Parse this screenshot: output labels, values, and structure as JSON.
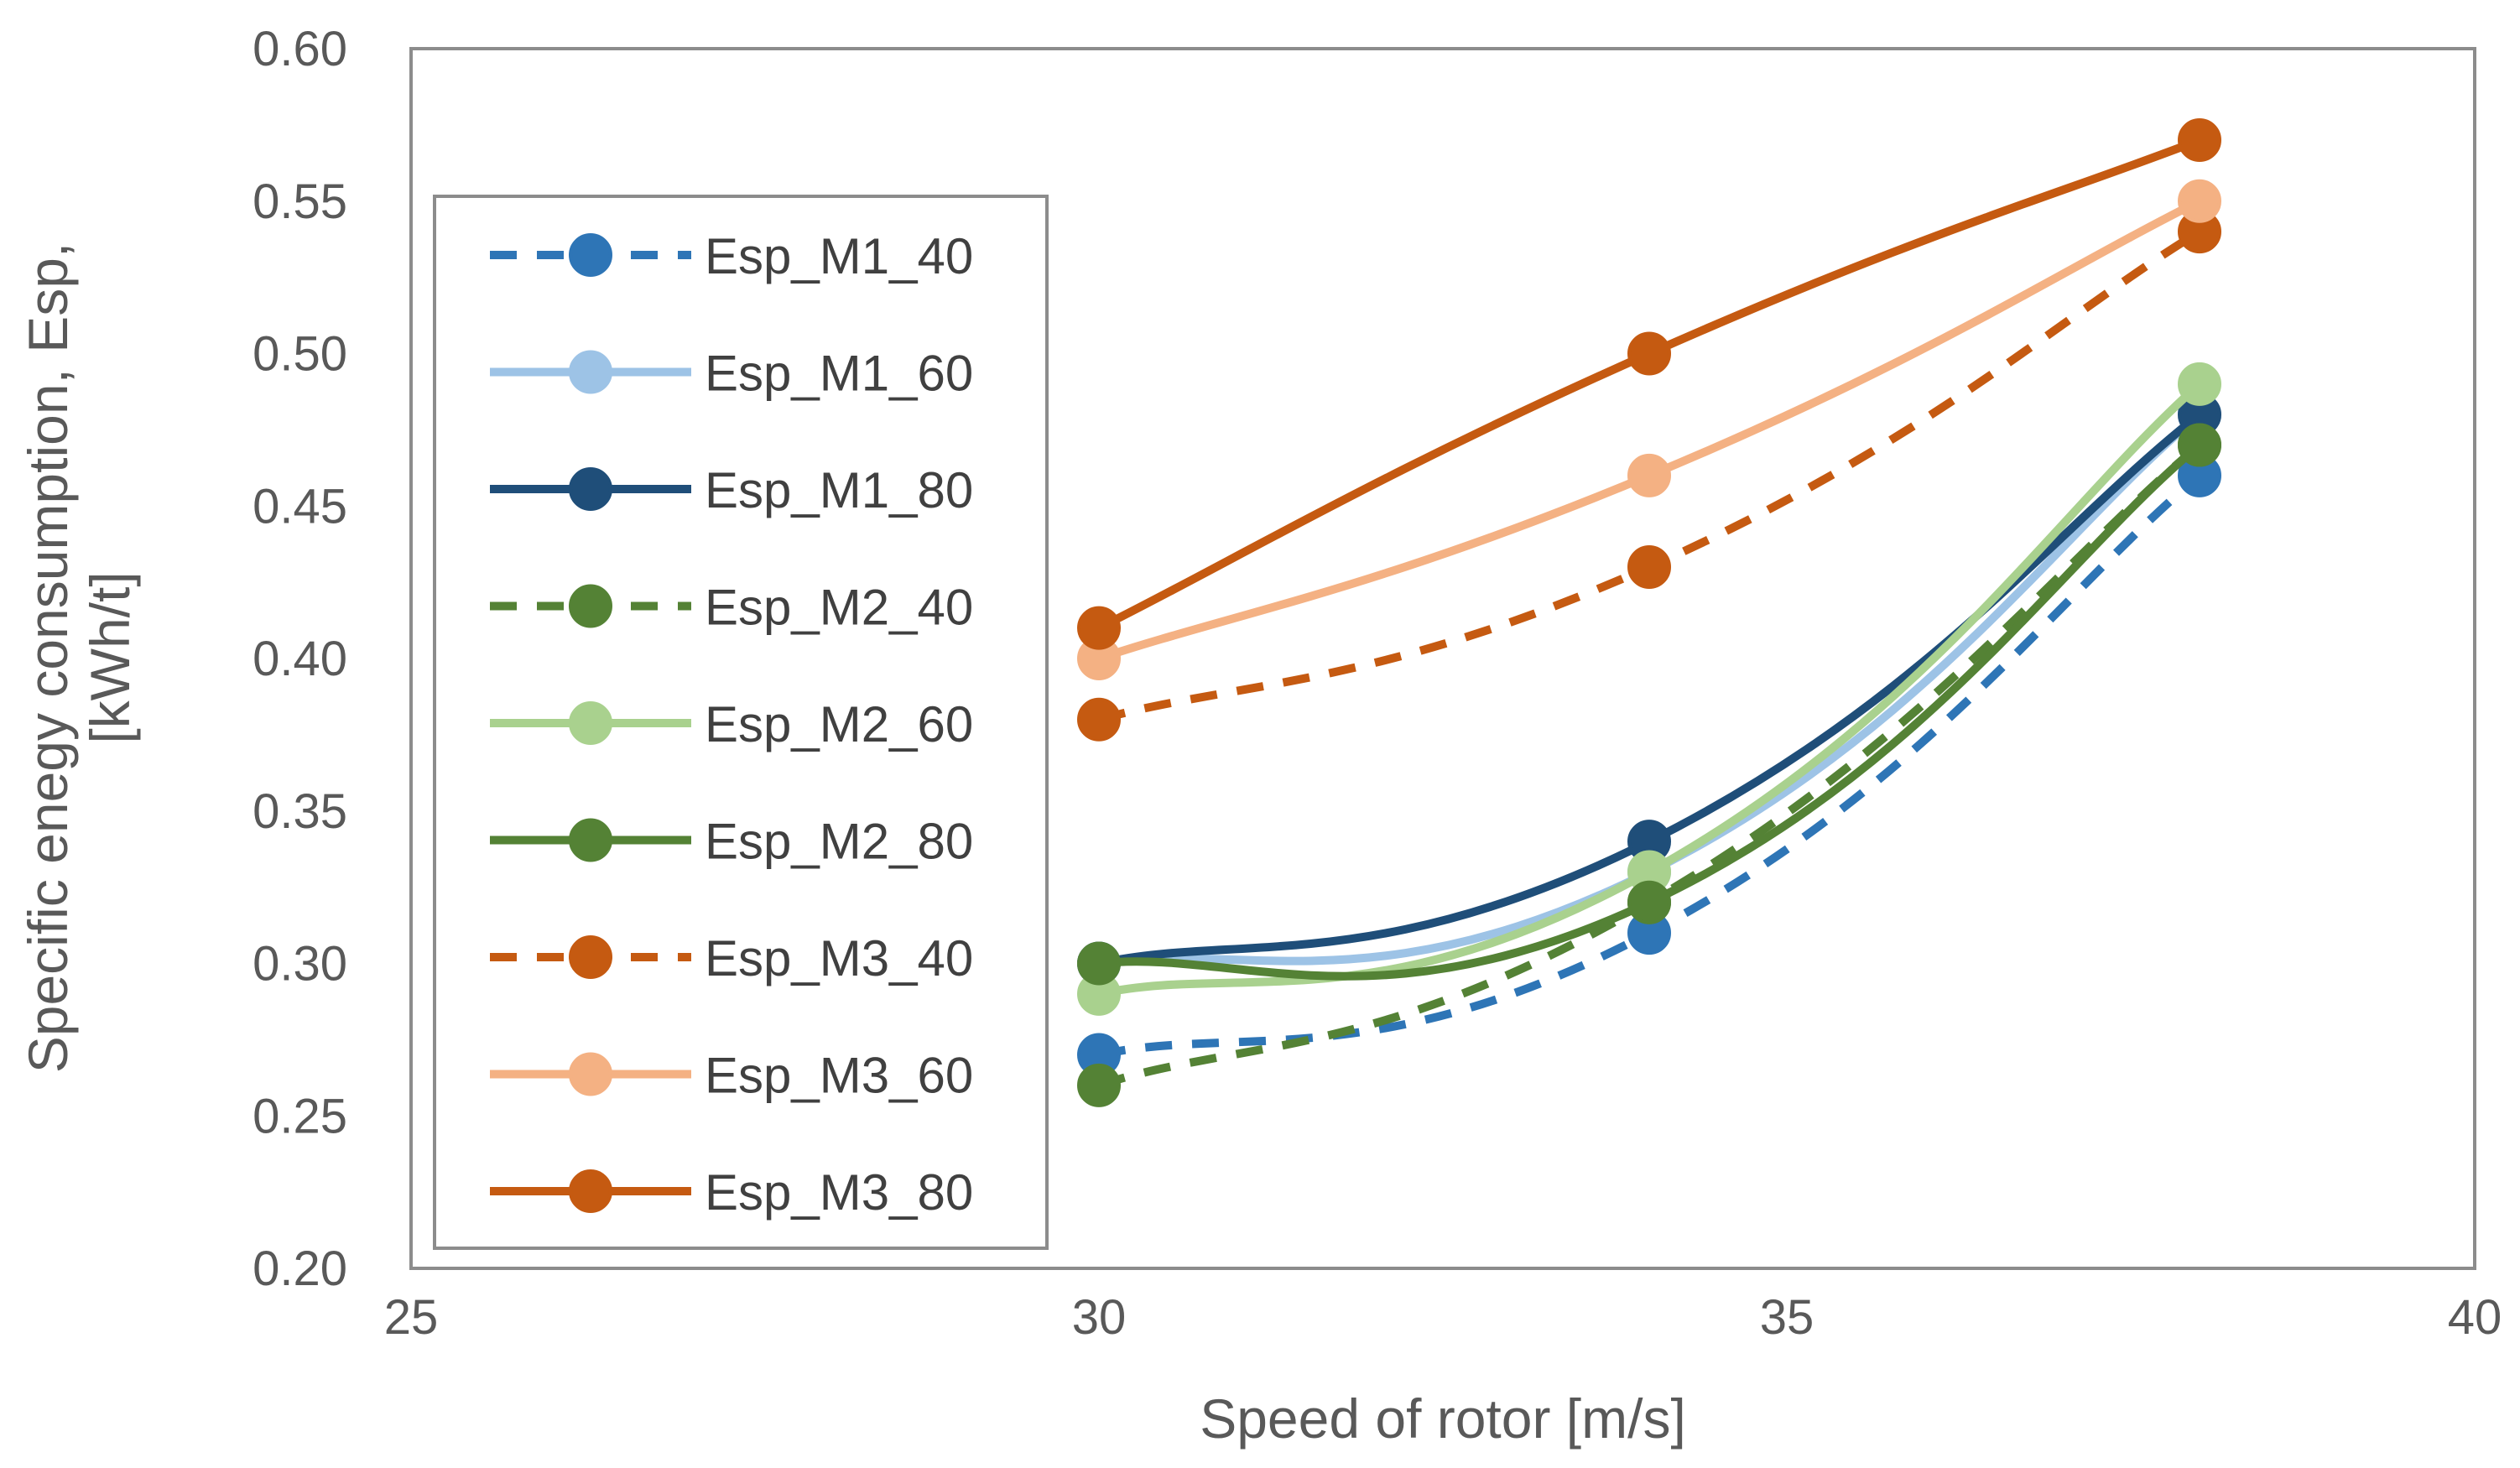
{
  "chart_data": {
    "type": "line",
    "xlabel": "Speed of rotor [m/s]",
    "ylabel_lines": [
      "Specific enegy consumption, Esp,",
      "[kWh/t]"
    ],
    "xlim": [
      25,
      40
    ],
    "ylim": [
      0.2,
      0.6
    ],
    "x_ticks": [
      "25",
      "30",
      "35",
      "40"
    ],
    "y_ticks": [
      "0.20",
      "0.25",
      "0.30",
      "0.35",
      "0.40",
      "0.45",
      "0.50",
      "0.55",
      "0.60"
    ],
    "x": [
      30,
      34,
      38
    ],
    "legend_position": "left, inside plot area",
    "grid": false,
    "series": [
      {
        "name": "Esp_M1_40",
        "values": [
          0.27,
          0.31,
          0.46
        ],
        "color": "#2E75B6",
        "dashed": true
      },
      {
        "name": "Esp_M1_60",
        "values": [
          0.3,
          0.33,
          0.48
        ],
        "color": "#9DC3E6",
        "dashed": false
      },
      {
        "name": "Esp_M1_80",
        "values": [
          0.3,
          0.34,
          0.48
        ],
        "color": "#1F4E79",
        "dashed": false
      },
      {
        "name": "Esp_M2_40",
        "values": [
          0.26,
          0.32,
          0.47
        ],
        "color": "#548235",
        "dashed": true
      },
      {
        "name": "Esp_M2_60",
        "values": [
          0.29,
          0.33,
          0.49
        ],
        "color": "#A9D18E",
        "dashed": false
      },
      {
        "name": "Esp_M2_80",
        "values": [
          0.3,
          0.32,
          0.47
        ],
        "color": "#548235",
        "dashed": false
      },
      {
        "name": "Esp_M3_40",
        "values": [
          0.38,
          0.43,
          0.54
        ],
        "color": "#C55A11",
        "dashed": true
      },
      {
        "name": "Esp_M3_60",
        "values": [
          0.4,
          0.46,
          0.55
        ],
        "color": "#F4B183",
        "dashed": false
      },
      {
        "name": "Esp_M3_80",
        "values": [
          0.41,
          0.5,
          0.57
        ],
        "color": "#C55A11",
        "dashed": false
      }
    ]
  }
}
